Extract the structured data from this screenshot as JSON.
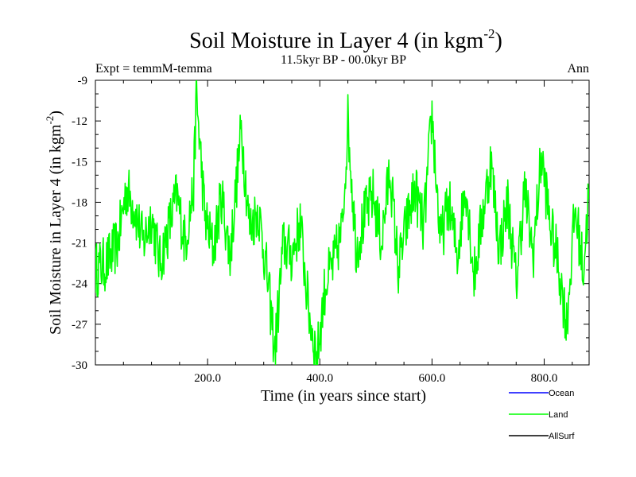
{
  "chart_data": {
    "type": "line",
    "title": "Soil Moisture in Layer 4 (in kgm",
    "title_sup": "-2",
    "title_close": ")",
    "subtitle": "11.5kyr BP - 00.0kyr BP",
    "left_note": "Expt = temmM-temma",
    "right_note": "Ann",
    "xlabel": "Time (in years since start)",
    "ylabel": "Soil Moisture in Layer 4 (in kgm",
    "ylabel_sup": "-2",
    "ylabel_close": ")",
    "xlim": [
      0,
      880
    ],
    "ylim": [
      -30,
      -9
    ],
    "xticks": [
      200,
      400,
      600,
      800
    ],
    "xtick_labels": [
      "200.0",
      "400.0",
      "600.0",
      "800.0"
    ],
    "yticks": [
      -9,
      -12,
      -15,
      -18,
      -21,
      -24,
      -27,
      -30
    ],
    "ytick_labels": [
      "-9",
      "-12",
      "-15",
      "-18",
      "-21",
      "-24",
      "-27",
      "-30"
    ],
    "legend": [
      {
        "name": "Ocean",
        "color": "#0000ff"
      },
      {
        "name": "Land",
        "color": "#00ff00"
      },
      {
        "name": "AllSurf",
        "color": "#000000"
      }
    ],
    "series": [
      {
        "name": "Land",
        "color": "#00ff00",
        "x": [
          0,
          20,
          40,
          55,
          70,
          85,
          100,
          115,
          130,
          145,
          160,
          175,
          180,
          195,
          210,
          225,
          240,
          255,
          260,
          275,
          290,
          305,
          320,
          335,
          350,
          365,
          380,
          395,
          410,
          425,
          440,
          450,
          465,
          480,
          495,
          510,
          525,
          540,
          555,
          570,
          585,
          600,
          615,
          630,
          645,
          660,
          675,
          690,
          705,
          720,
          735,
          750,
          765,
          780,
          795,
          810,
          825,
          840,
          855,
          870,
          880
        ],
        "values": [
          -23.0,
          -22.5,
          -21.0,
          -17.0,
          -18.5,
          -21.0,
          -19.0,
          -22.5,
          -20.0,
          -17.5,
          -21.0,
          -17.0,
          -10.0,
          -19.0,
          -21.5,
          -17.5,
          -22.0,
          -15.0,
          -12.5,
          -20.0,
          -18.5,
          -23.0,
          -29.0,
          -21.0,
          -22.0,
          -19.5,
          -26.0,
          -29.5,
          -24.0,
          -22.5,
          -20.0,
          -12.0,
          -21.5,
          -19.0,
          -17.5,
          -21.0,
          -15.5,
          -23.0,
          -19.5,
          -17.0,
          -20.0,
          -11.5,
          -21.0,
          -18.0,
          -22.0,
          -16.5,
          -23.5,
          -19.0,
          -15.0,
          -21.5,
          -18.0,
          -24.0,
          -17.0,
          -22.0,
          -14.5,
          -19.5,
          -22.5,
          -27.0,
          -18.5,
          -23.0,
          -17.0
        ]
      },
      {
        "name": "Ocean",
        "color": "#0000ff",
        "x": [],
        "values": []
      },
      {
        "name": "AllSurf",
        "color": "#000000",
        "x": [],
        "values": []
      }
    ]
  }
}
